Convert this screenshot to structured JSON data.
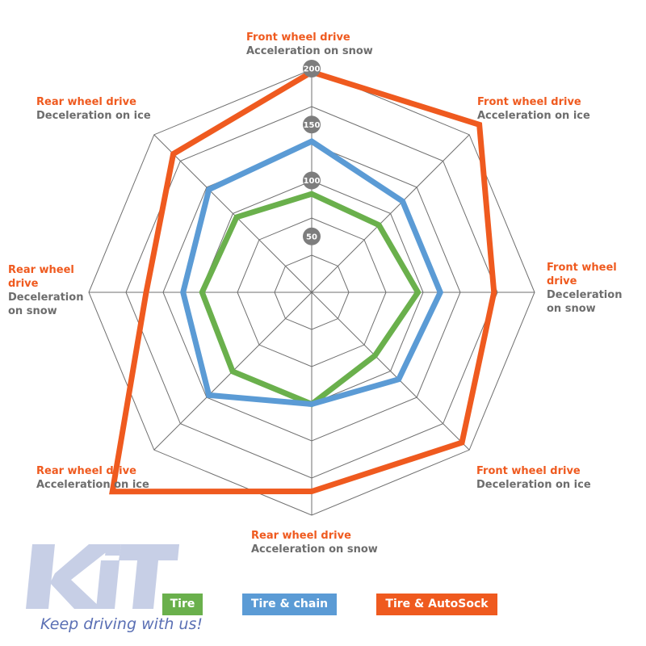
{
  "chart_data": {
    "type": "radar",
    "axes": [
      {
        "drive": "Front wheel drive",
        "metric": "Acceleration on snow"
      },
      {
        "drive": "Front wheel drive",
        "metric": "Acceleration on ice"
      },
      {
        "drive": "Front wheel drive",
        "metric": "Deceleration on snow"
      },
      {
        "drive": "Front wheel drive",
        "metric": "Deceleration on ice"
      },
      {
        "drive": "Rear wheel drive",
        "metric": "Acceleration on snow"
      },
      {
        "drive": "Rear wheel drive",
        "metric": "Acceleration on ice"
      },
      {
        "drive": "Rear wheel drive",
        "metric": "Deceleration on snow"
      },
      {
        "drive": "Rear wheel drive",
        "metric": "Deceleration on ice"
      }
    ],
    "ticks": [
      "50",
      "100",
      "150",
      "200"
    ],
    "tick_values": [
      50,
      100,
      150,
      200
    ],
    "rlim": [
      0,
      200
    ],
    "series": [
      {
        "name": "Tire",
        "color": "#6ab04c",
        "values": [
          88,
          85,
          95,
          80,
          100,
          100,
          98,
          95
        ]
      },
      {
        "name": "Tire & chain",
        "color": "#5b9bd5",
        "values": [
          135,
          115,
          115,
          110,
          100,
          130,
          115,
          130
        ]
      },
      {
        "name": "Tire & AutoSock",
        "color": "#ef5a1f",
        "values": [
          197,
          212,
          163,
          190,
          178,
          252,
          148,
          175
        ]
      }
    ],
    "legend_position": "bottom"
  },
  "branding": {
    "logo_text": "KiTT",
    "slogan": "Keep driving with us!"
  }
}
